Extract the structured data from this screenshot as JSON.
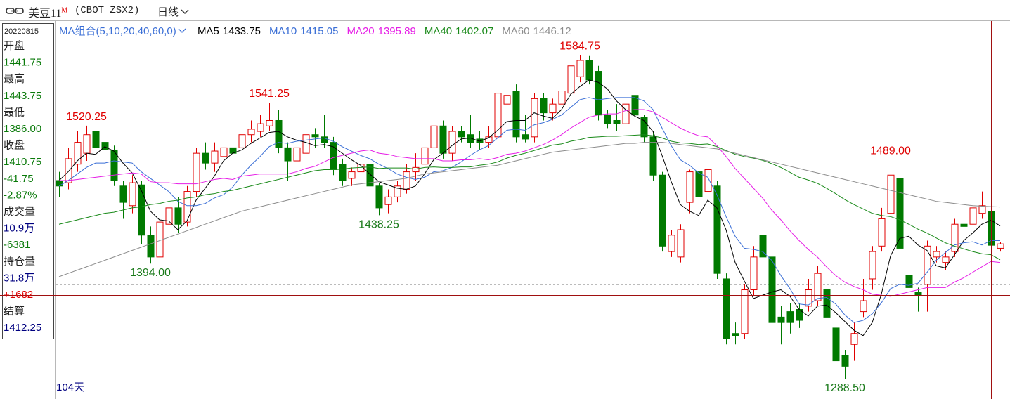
{
  "header": {
    "symbol": "美豆11",
    "contract_mark": "M",
    "code": "(CBOT ZSX2)",
    "period": "日线"
  },
  "info_panel": {
    "date": "20220815",
    "rows": [
      {
        "text": "开盘",
        "color": "#222222"
      },
      {
        "text": "1441.75",
        "color": "#0a7a0a"
      },
      {
        "text": "最高",
        "color": "#222222"
      },
      {
        "text": "1443.75",
        "color": "#0a7a0a"
      },
      {
        "text": "最低",
        "color": "#222222"
      },
      {
        "text": "1386.00",
        "color": "#0a7a0a"
      },
      {
        "text": "收盘",
        "color": "#222222"
      },
      {
        "text": "1410.75",
        "color": "#0a7a0a"
      },
      {
        "text": "-41.75",
        "color": "#0a7a0a"
      },
      {
        "text": "-2.87%",
        "color": "#0a7a0a"
      },
      {
        "text": "成交量",
        "color": "#222222"
      },
      {
        "text": "10.9万",
        "color": "#000080"
      },
      {
        "text": "-6381",
        "color": "#0a7a0a"
      },
      {
        "text": "持仓量",
        "color": "#222222"
      },
      {
        "text": "31.8万",
        "color": "#000080"
      },
      {
        "text": "+1682",
        "color": "#e00000"
      },
      {
        "text": "结算",
        "color": "#222222"
      },
      {
        "text": "1412.25",
        "color": "#000080"
      }
    ]
  },
  "chart_data": {
    "type": "candlestick",
    "indicator": "MA组合(5,10,20,40,60,0)",
    "days_label": "104天",
    "ylim": [
      1270,
      1616
    ],
    "up_color": "#e00000",
    "down_color": "#007a00",
    "open": [
      1470,
      1468,
      1485,
      1495,
      1515,
      1505,
      1498,
      1465,
      1447,
      1466,
      1420,
      1400,
      1430,
      1445,
      1432,
      1460,
      1495,
      1486,
      1492,
      1500,
      1500,
      1512,
      1515,
      1520,
      1525,
      1500,
      1488,
      1495,
      1512,
      1510,
      1505,
      1485,
      1472,
      1478,
      1485,
      1465,
      1448,
      1455,
      1462,
      1478,
      1485,
      1500,
      1520,
      1495,
      1515,
      1512,
      1508,
      1505,
      1510,
      1540,
      1552,
      1512,
      1510,
      1545,
      1532,
      1540,
      1550,
      1565,
      1580,
      1570,
      1530,
      1525,
      1522,
      1548,
      1528,
      1510,
      1475,
      1405,
      1400,
      1450,
      1478,
      1460,
      1465,
      1380,
      1330,
      1330,
      1370,
      1420,
      1400,
      1345,
      1350,
      1352,
      1355,
      1360,
      1370,
      1335,
      1310,
      1320,
      1350,
      1380,
      1410,
      1440,
      1472,
      1383,
      1368,
      1375,
      1400,
      1395,
      1405,
      1430,
      1430,
      1440,
      1441.75,
      1408
    ],
    "high": [
      1478,
      1500,
      1515,
      1520.25,
      1518,
      1510,
      1502,
      1470,
      1475,
      1470,
      1428,
      1438,
      1460,
      1455,
      1465,
      1500,
      1505,
      1505,
      1510,
      1512,
      1518,
      1525,
      1530,
      1541.25,
      1535,
      1505,
      1510,
      1520,
      1518,
      1530,
      1510,
      1490,
      1482,
      1495,
      1490,
      1468,
      1462,
      1470,
      1485,
      1495,
      1510,
      1528,
      1525,
      1520,
      1520,
      1530,
      1515,
      1520,
      1555,
      1560,
      1558,
      1530,
      1550,
      1550,
      1545,
      1560,
      1580,
      1584.75,
      1584,
      1575,
      1535,
      1540,
      1545,
      1552,
      1530,
      1515,
      1478,
      1425,
      1430,
      1480,
      1482,
      1510,
      1470,
      1385,
      1340,
      1375,
      1410,
      1425,
      1405,
      1355,
      1358,
      1358,
      1380,
      1392,
      1375,
      1340,
      1315,
      1340,
      1380,
      1410,
      1445,
      1489,
      1478,
      1400,
      1372,
      1415,
      1410,
      1405,
      1435,
      1440,
      1450,
      1460,
      1443.75,
      1414
    ],
    "low": [
      1455,
      1462,
      1478,
      1488,
      1495,
      1490,
      1465,
      1435,
      1440,
      1412,
      1394,
      1398,
      1425,
      1422,
      1428,
      1455,
      1480,
      1478,
      1485,
      1490,
      1495,
      1505,
      1510,
      1515,
      1495,
      1470,
      1480,
      1490,
      1500,
      1500,
      1475,
      1465,
      1465,
      1472,
      1460,
      1438.25,
      1440,
      1450,
      1458,
      1470,
      1480,
      1495,
      1490,
      1488,
      1505,
      1500,
      1498,
      1500,
      1505,
      1530,
      1505,
      1505,
      1505,
      1525,
      1525,
      1535,
      1545,
      1560,
      1558,
      1525,
      1518,
      1515,
      1518,
      1525,
      1505,
      1470,
      1405,
      1400,
      1395,
      1440,
      1448,
      1455,
      1380,
      1320,
      1320,
      1325,
      1365,
      1395,
      1330,
      1320,
      1330,
      1335,
      1350,
      1355,
      1335,
      1295,
      1288.5,
      1305,
      1345,
      1370,
      1405,
      1435,
      1400,
      1365,
      1350,
      1350,
      1395,
      1388,
      1400,
      1420,
      1425,
      1435,
      1386,
      1405
    ],
    "close": [
      1465,
      1490,
      1505,
      1512,
      1500,
      1498,
      1470,
      1450,
      1468,
      1420,
      1400,
      1432,
      1445,
      1430,
      1460,
      1495,
      1486,
      1497,
      1500,
      1495,
      1512,
      1517,
      1522,
      1525,
      1500,
      1488,
      1500,
      1512,
      1510,
      1505,
      1480,
      1470,
      1478,
      1485,
      1465,
      1445,
      1455,
      1465,
      1478,
      1482,
      1500,
      1520,
      1495,
      1515,
      1510,
      1505,
      1505,
      1510,
      1550,
      1548,
      1510,
      1508,
      1545,
      1532,
      1540,
      1552,
      1575,
      1580,
      1562,
      1530,
      1522,
      1522,
      1540,
      1530,
      1510,
      1475,
      1410,
      1420,
      1425,
      1478,
      1455,
      1480,
      1385,
      1325,
      1328,
      1370,
      1400,
      1400,
      1340,
      1340,
      1340,
      1342,
      1370,
      1385,
      1345,
      1305,
      1300,
      1330,
      1360,
      1405,
      1435,
      1475,
      1408,
      1372,
      1365,
      1410,
      1405,
      1400,
      1430,
      1428,
      1445,
      1447,
      1410.75,
      1412
    ],
    "high_labels": [
      {
        "value": 1520.25,
        "label": "1520.25"
      },
      {
        "value": 1541.25,
        "label": "1541.25"
      },
      {
        "value": 1584.75,
        "label": "1584.75"
      },
      {
        "value": 1489,
        "label": "1489.00"
      }
    ],
    "low_labels": [
      {
        "value": 1394,
        "label": "1394.00"
      },
      {
        "value": 1438.25,
        "label": "1438.25"
      },
      {
        "value": 1288.5,
        "label": "1288.50"
      }
    ],
    "high_label_color": "#e00000",
    "low_label_color": "#1a7a1a",
    "legend_index": 102,
    "series": [
      {
        "name": "MA5",
        "color": "#000000",
        "values": [
          1470,
          1478,
          1488,
          1495,
          1494,
          1501,
          1497,
          1486,
          1477,
          1461,
          1442,
          1434,
          1433,
          1425,
          1433,
          1452,
          1463,
          1474,
          1488,
          1495,
          1498,
          1504,
          1509,
          1514,
          1515,
          1510,
          1507,
          1505,
          1502,
          1503,
          1501,
          1495,
          1489,
          1484,
          1476,
          1469,
          1466,
          1463,
          1462,
          1465,
          1476,
          1489,
          1495,
          1502,
          1508,
          1509,
          1506,
          1509,
          1516,
          1524,
          1525,
          1525,
          1532,
          1529,
          1527,
          1535,
          1549,
          1556,
          1562,
          1560,
          1554,
          1543,
          1535,
          1529,
          1525,
          1515,
          1493,
          1469,
          1448,
          1442,
          1438,
          1452,
          1445,
          1425,
          1395,
          1378,
          1362,
          1365,
          1368,
          1370,
          1364,
          1352,
          1346,
          1355,
          1356,
          1349,
          1341,
          1333,
          1328,
          1340,
          1366,
          1401,
          1417,
          1419,
          1411,
          1406,
          1392,
          1390,
          1402,
          1415,
          1422,
          1430,
          1433.75,
          1428.5
        ]
      },
      {
        "name": "MA10",
        "color": "#3b6fd6",
        "values": [
          1465,
          1470,
          1476,
          1482,
          1486,
          1486,
          1488,
          1487,
          1486,
          1478,
          1472,
          1466,
          1460,
          1451,
          1447,
          1447,
          1449,
          1454,
          1457,
          1464,
          1475,
          1484,
          1492,
          1501,
          1505,
          1504,
          1506,
          1507,
          1508,
          1509,
          1506,
          1501,
          1497,
          1493,
          1490,
          1485,
          1481,
          1476,
          1473,
          1471,
          1473,
          1478,
          1479,
          1482,
          1487,
          1493,
          1498,
          1502,
          1509,
          1516,
          1517,
          1516,
          1521,
          1523,
          1526,
          1530,
          1537,
          1544,
          1546,
          1544,
          1545,
          1546,
          1546,
          1546,
          1543,
          1535,
          1518,
          1502,
          1489,
          1484,
          1477,
          1473,
          1457,
          1437,
          1419,
          1408,
          1407,
          1405,
          1397,
          1383,
          1371,
          1357,
          1356,
          1362,
          1363,
          1357,
          1347,
          1340,
          1342,
          1348,
          1358,
          1371,
          1375,
          1374,
          1376,
          1386,
          1397,
          1404,
          1411,
          1413,
          1414,
          1411,
          1415.05,
          1415
        ]
      },
      {
        "name": "MA20",
        "color": "#e61ee6",
        "values": [
          1470,
          1470,
          1471,
          1472,
          1473,
          1474,
          1475,
          1476,
          1477,
          1476,
          1469,
          1468,
          1468,
          1467,
          1467,
          1467,
          1469,
          1471,
          1472,
          1471,
          1474,
          1475,
          1476,
          1476,
          1476,
          1476,
          1478,
          1481,
          1483,
          1487,
          1491,
          1493,
          1495,
          1497,
          1498,
          1495,
          1494,
          1492,
          1491,
          1490,
          1490,
          1490,
          1488,
          1488,
          1489,
          1489,
          1490,
          1489,
          1491,
          1494,
          1495,
          1497,
          1500,
          1503,
          1507,
          1512,
          1518,
          1523,
          1528,
          1530,
          1531,
          1531,
          1534,
          1535,
          1535,
          1533,
          1528,
          1523,
          1518,
          1514,
          1511,
          1510,
          1502,
          1492,
          1481,
          1472,
          1463,
          1454,
          1443,
          1434,
          1424,
          1415,
          1407,
          1400,
          1391,
          1383,
          1377,
          1373,
          1370,
          1366,
          1365,
          1364,
          1366,
          1368,
          1370,
          1372,
          1372,
          1372,
          1377,
          1381,
          1386,
          1391,
          1395.89,
          1395
        ]
      },
      {
        "name": "MA40",
        "color": "#1a8a1a",
        "values": [
          1430,
          1432,
          1434,
          1436,
          1438,
          1440,
          1441,
          1443,
          1445,
          1446,
          1448,
          1449,
          1451,
          1452,
          1454,
          1455,
          1457,
          1458,
          1460,
          1461,
          1463,
          1465,
          1467,
          1469,
          1471,
          1473,
          1475,
          1477,
          1479,
          1480,
          1480,
          1480.5,
          1481.5,
          1482,
          1482.5,
          1481,
          1481.5,
          1481.5,
          1481.5,
          1480.5,
          1482,
          1482.5,
          1482,
          1482,
          1482.5,
          1482.5,
          1484,
          1485,
          1487,
          1490.5,
          1493,
          1495,
          1497.5,
          1500,
          1502.5,
          1503.5,
          1506,
          1507.5,
          1509.5,
          1510,
          1510.5,
          1510.5,
          1511,
          1511.5,
          1512,
          1511,
          1509,
          1506,
          1504.5,
          1504,
          1503,
          1503.5,
          1501,
          1497.5,
          1494,
          1492,
          1490.5,
          1488.5,
          1485.5,
          1482,
          1477.5,
          1473,
          1470.5,
          1467.5,
          1463,
          1458,
          1452.5,
          1448,
          1444,
          1440,
          1438,
          1437,
          1434,
          1430,
          1425.5,
          1422,
          1417.5,
          1413,
          1410,
          1407.5,
          1405,
          1403,
          1402.07,
          1397.5
        ]
      },
      {
        "name": "MA60",
        "color": "#8c8c8c",
        "values": [
          1382,
          1385,
          1388,
          1391,
          1394,
          1397,
          1400,
          1403,
          1406,
          1409,
          1412,
          1415,
          1418,
          1421,
          1424,
          1427,
          1430,
          1433,
          1436,
          1439,
          1442,
          1444,
          1446,
          1448,
          1450,
          1452,
          1454,
          1456,
          1458,
          1460,
          1462,
          1464,
          1466,
          1467,
          1468,
          1469,
          1470,
          1471,
          1472,
          1474,
          1476,
          1477,
          1478,
          1479,
          1480,
          1481,
          1482,
          1483,
          1484,
          1486,
          1488,
          1490,
          1492,
          1494,
          1496,
          1497,
          1498,
          1499,
          1500,
          1501,
          1502,
          1503,
          1504,
          1504,
          1505,
          1505,
          1505,
          1504,
          1503,
          1502,
          1501,
          1500,
          1499,
          1497,
          1495,
          1493,
          1491,
          1489,
          1487,
          1485,
          1483,
          1481,
          1479,
          1477,
          1475,
          1473,
          1471,
          1469,
          1467,
          1465,
          1463,
          1461,
          1459,
          1457,
          1455,
          1453,
          1451,
          1450,
          1449,
          1448,
          1447,
          1446.5,
          1446.12,
          1445.8
        ]
      }
    ]
  }
}
